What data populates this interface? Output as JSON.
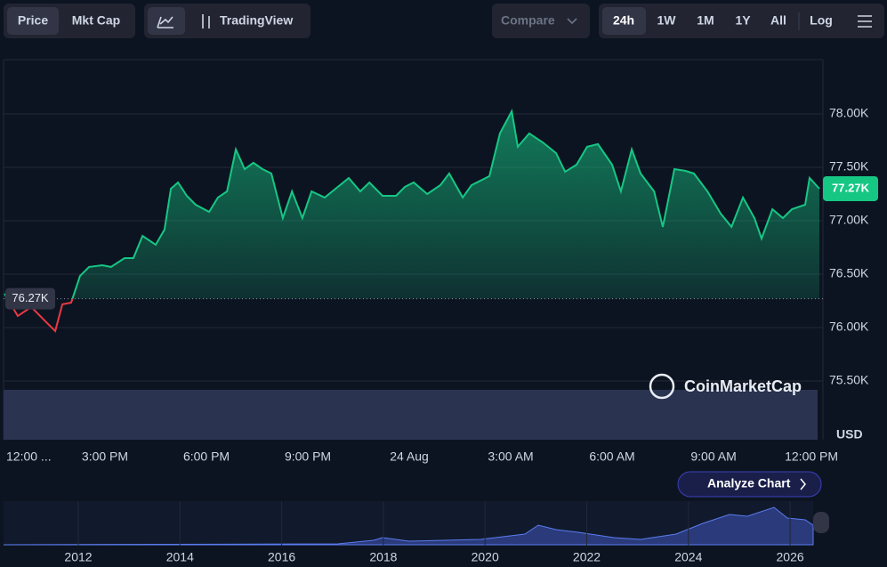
{
  "toolbar": {
    "tabs": [
      "Price",
      "Mkt Cap"
    ],
    "tradingview": "TradingView",
    "compare": "Compare",
    "ranges": [
      "24h",
      "1W",
      "1M",
      "1Y",
      "All"
    ],
    "log": "Log"
  },
  "watermark": "CoinMarketCap",
  "analyze": "Analyze Chart",
  "navigator": {
    "xticks": [
      "2012",
      "2014",
      "2016",
      "2018",
      "2020",
      "2022",
      "2024",
      "2026"
    ]
  },
  "chart_data": {
    "type": "line",
    "unit_label": "USD",
    "reference": {
      "value": 76270,
      "label": "76.27K"
    },
    "last_label": "77.27K",
    "up_color": "#16c784",
    "down_color": "#ea3943",
    "xlim": [
      0,
      24.13
    ],
    "ylim": [
      74950,
      78508
    ],
    "xticks": [
      {
        "value": 0,
        "label": "12:00 ..."
      },
      {
        "value": 3,
        "label": "3:00 PM"
      },
      {
        "value": 6,
        "label": "6:00 PM"
      },
      {
        "value": 9,
        "label": "9:00 PM"
      },
      {
        "value": 12,
        "label": "24 Aug"
      },
      {
        "value": 15,
        "label": "3:00 AM"
      },
      {
        "value": 18,
        "label": "6:00 AM"
      },
      {
        "value": 21,
        "label": "9:00 AM"
      },
      {
        "value": 24,
        "label": "12:00 PM"
      }
    ],
    "yticks": [
      {
        "value": 75500,
        "label": "75.50K"
      },
      {
        "value": 76000,
        "label": "76.00K"
      },
      {
        "value": 76500,
        "label": "76.50K"
      },
      {
        "value": 77000,
        "label": "77.00K"
      },
      {
        "value": 77500,
        "label": "77.50K"
      },
      {
        "value": 78000,
        "label": "78.00K"
      }
    ],
    "grid": true,
    "x": [
      0.03,
      0.42,
      0.82,
      1.21,
      1.53,
      1.74,
      2.0,
      2.26,
      2.53,
      2.92,
      3.18,
      3.58,
      3.84,
      4.11,
      4.5,
      4.76,
      4.95,
      5.16,
      5.42,
      5.68,
      6.08,
      6.34,
      6.61,
      6.87,
      7.13,
      7.39,
      7.66,
      7.92,
      8.26,
      8.53,
      8.84,
      9.11,
      9.5,
      9.89,
      10.21,
      10.55,
      10.82,
      11.21,
      11.61,
      11.87,
      12.13,
      12.53,
      12.92,
      13.18,
      13.58,
      13.84,
      14.37,
      14.68,
      15.03,
      15.21,
      15.55,
      15.95,
      16.34,
      16.61,
      16.95,
      17.26,
      17.58,
      18.0,
      18.26,
      18.58,
      18.84,
      19.24,
      19.5,
      19.84,
      20.16,
      20.42,
      20.82,
      21.21,
      21.53,
      21.87,
      22.21,
      22.42,
      22.74,
      23.05,
      23.32,
      23.71,
      23.84,
      24.13
    ],
    "values": [
      76317,
      76108,
      76192,
      76067,
      75967,
      76217,
      76233,
      76483,
      76567,
      76583,
      76567,
      76650,
      76650,
      76858,
      76775,
      76917,
      77300,
      77358,
      77233,
      77150,
      77083,
      77217,
      77275,
      77667,
      77483,
      77542,
      77483,
      77442,
      77025,
      77275,
      77025,
      77275,
      77217,
      77317,
      77400,
      77275,
      77358,
      77233,
      77233,
      77317,
      77358,
      77250,
      77333,
      77442,
      77217,
      77333,
      77417,
      77817,
      78025,
      77692,
      77817,
      77733,
      77633,
      77458,
      77525,
      77692,
      77717,
      77525,
      77275,
      77667,
      77442,
      77275,
      76942,
      77483,
      77467,
      77442,
      77275,
      77067,
      76942,
      77217,
      77025,
      76833,
      77108,
      77025,
      77108,
      77150,
      77400,
      77300
    ]
  }
}
